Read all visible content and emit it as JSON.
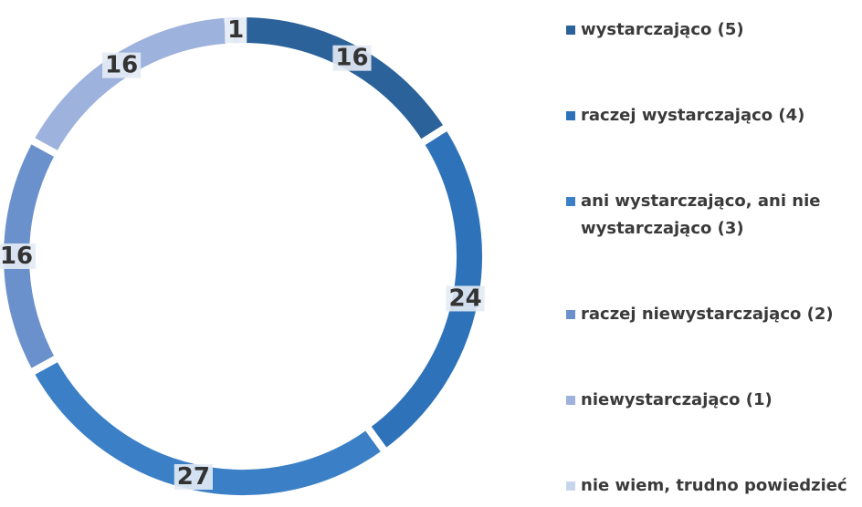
{
  "chart_data": {
    "type": "pie",
    "categories": [
      "wystarczająco (5)",
      "raczej wystarczająco (4)",
      "ani wystarczająco, ani nie wystarczająco (3)",
      "raczej niewystarczająco (2)",
      "niewystarczająco (1)",
      "nie wiem, trudno powiedzieć"
    ],
    "values": [
      16,
      24,
      27,
      16,
      16,
      1
    ],
    "colors": [
      "#2b6299",
      "#2e73b9",
      "#3b80c6",
      "#6b91cc",
      "#9db2dc",
      "#c7d6ec"
    ],
    "legend": "right"
  }
}
